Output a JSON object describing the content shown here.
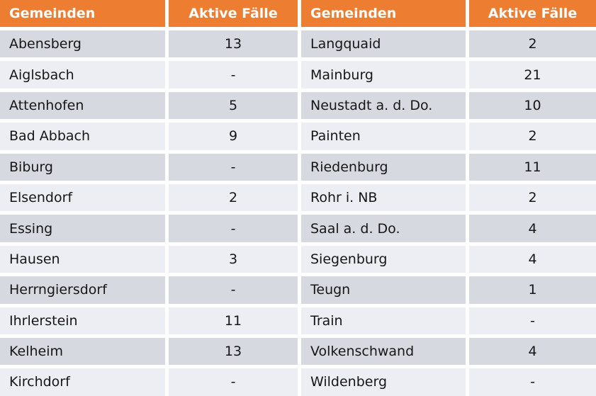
{
  "table": {
    "headers": [
      {
        "label": "Gemeinden"
      },
      {
        "label": "Aktive Fälle"
      },
      {
        "label": "Gemeinden"
      },
      {
        "label": "Aktive Fälle"
      }
    ],
    "colors": {
      "header_bg": "#ED7D31",
      "header_text": "#FFFFFF",
      "row_dark": "#D7D9E1",
      "row_light": "#EDEEF3",
      "gap": "#FFFFFF",
      "text": "#161616"
    },
    "rows": [
      {
        "left": {
          "gemeinde": "Abensberg",
          "aktive_faelle": "13"
        },
        "right": {
          "gemeinde": "Langquaid",
          "aktive_faelle": "2"
        }
      },
      {
        "left": {
          "gemeinde": "Aiglsbach",
          "aktive_faelle": "-"
        },
        "right": {
          "gemeinde": "Mainburg",
          "aktive_faelle": "21"
        }
      },
      {
        "left": {
          "gemeinde": "Attenhofen",
          "aktive_faelle": "5"
        },
        "right": {
          "gemeinde": "Neustadt a. d. Do.",
          "aktive_faelle": "10"
        }
      },
      {
        "left": {
          "gemeinde": "Bad Abbach",
          "aktive_faelle": "9"
        },
        "right": {
          "gemeinde": "Painten",
          "aktive_faelle": "2"
        }
      },
      {
        "left": {
          "gemeinde": "Biburg",
          "aktive_faelle": "-"
        },
        "right": {
          "gemeinde": "Riedenburg",
          "aktive_faelle": "11"
        }
      },
      {
        "left": {
          "gemeinde": "Elsendorf",
          "aktive_faelle": "2"
        },
        "right": {
          "gemeinde": "Rohr i. NB",
          "aktive_faelle": "2"
        }
      },
      {
        "left": {
          "gemeinde": "Essing",
          "aktive_faelle": "-"
        },
        "right": {
          "gemeinde": "Saal a. d. Do.",
          "aktive_faelle": "4"
        }
      },
      {
        "left": {
          "gemeinde": "Hausen",
          "aktive_faelle": "3"
        },
        "right": {
          "gemeinde": "Siegenburg",
          "aktive_faelle": "4"
        }
      },
      {
        "left": {
          "gemeinde": "Herrngiersdorf",
          "aktive_faelle": "-"
        },
        "right": {
          "gemeinde": "Teugn",
          "aktive_faelle": "1"
        }
      },
      {
        "left": {
          "gemeinde": "Ihrlerstein",
          "aktive_faelle": "11"
        },
        "right": {
          "gemeinde": "Train",
          "aktive_faelle": "-"
        }
      },
      {
        "left": {
          "gemeinde": "Kelheim",
          "aktive_faelle": "13"
        },
        "right": {
          "gemeinde": "Volkenschwand",
          "aktive_faelle": "4"
        }
      },
      {
        "left": {
          "gemeinde": "Kirchdorf",
          "aktive_faelle": "-"
        },
        "right": {
          "gemeinde": "Wildenberg",
          "aktive_faelle": "-"
        }
      }
    ]
  }
}
